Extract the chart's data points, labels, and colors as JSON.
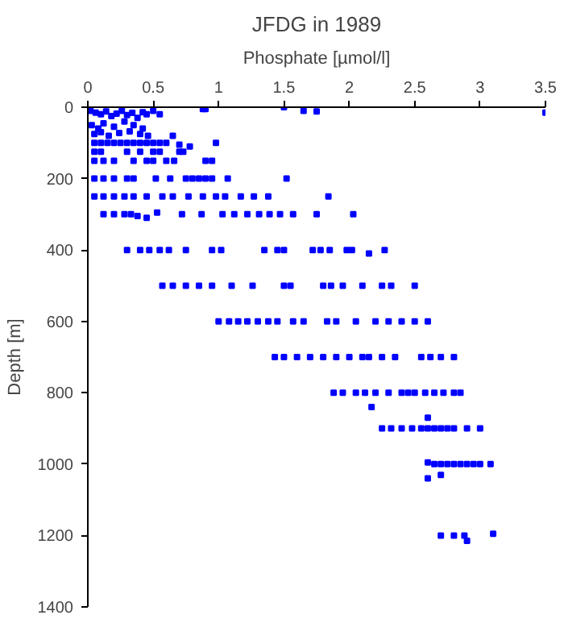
{
  "chart_data": {
    "type": "scatter",
    "title": "JFDG in 1989",
    "xlabel": "Phosphate [µmol/l]",
    "ylabel": "Depth [m]",
    "xlim": [
      0,
      3.5
    ],
    "xticks": [
      0,
      0.5,
      1,
      1.5,
      2,
      2.5,
      3,
      3.5
    ],
    "ylim": [
      1400,
      0
    ],
    "yticks": [
      0,
      200,
      400,
      600,
      800,
      1000,
      1200,
      1400
    ],
    "grid": false,
    "marker": "square",
    "series": [
      {
        "color": "#0000ff",
        "x": [
          0.02,
          0.06,
          0.1,
          0.14,
          0.18,
          0.22,
          0.26,
          0.3,
          0.34,
          0.38,
          0.42,
          0.45,
          0.5,
          0.55,
          0.88,
          0.9,
          1.5,
          1.65,
          1.75,
          3.5,
          0.03,
          0.08,
          0.12,
          0.2,
          0.28,
          0.35,
          0.42,
          0.05,
          0.1,
          0.16,
          0.24,
          0.32,
          0.4,
          0.46,
          0.65,
          0.05,
          0.1,
          0.15,
          0.2,
          0.25,
          0.3,
          0.35,
          0.4,
          0.45,
          0.5,
          0.55,
          0.6,
          0.7,
          0.78,
          0.98,
          0.05,
          0.1,
          0.3,
          0.4,
          0.5,
          0.55,
          0.7,
          0.73,
          0.05,
          0.12,
          0.2,
          0.35,
          0.45,
          0.5,
          0.6,
          0.66,
          0.9,
          0.95,
          0.05,
          0.12,
          0.2,
          0.3,
          0.35,
          0.52,
          0.63,
          0.75,
          0.8,
          0.85,
          0.9,
          0.95,
          1.07,
          1.52,
          0.05,
          0.12,
          0.2,
          0.28,
          0.35,
          0.45,
          0.57,
          0.65,
          0.77,
          0.88,
          0.98,
          1.05,
          1.17,
          1.27,
          1.38,
          1.84,
          0.12,
          0.2,
          0.28,
          0.33,
          0.38,
          0.45,
          0.53,
          0.72,
          0.87,
          1.03,
          1.12,
          1.22,
          1.31,
          1.39,
          1.47,
          1.57,
          1.75,
          2.03,
          0.3,
          0.4,
          0.47,
          0.55,
          0.62,
          0.75,
          0.95,
          1.02,
          1.35,
          1.45,
          1.5,
          1.72,
          1.78,
          1.85,
          1.98,
          2.02,
          2.15,
          2.27,
          0.57,
          0.65,
          0.75,
          0.85,
          0.95,
          1.1,
          1.26,
          1.5,
          1.55,
          1.8,
          1.86,
          1.95,
          2.1,
          2.25,
          2.32,
          2.5,
          1.0,
          1.08,
          1.15,
          1.22,
          1.3,
          1.38,
          1.45,
          1.57,
          1.65,
          1.83,
          1.9,
          2.05,
          2.2,
          2.3,
          2.4,
          2.5,
          2.6,
          1.43,
          1.5,
          1.6,
          1.7,
          1.8,
          1.9,
          2.0,
          2.1,
          2.15,
          2.25,
          2.35,
          2.55,
          2.62,
          2.7,
          2.8,
          1.88,
          1.95,
          2.05,
          2.12,
          2.2,
          2.3,
          2.4,
          2.45,
          2.5,
          2.58,
          2.65,
          2.72,
          2.8,
          2.85,
          2.17,
          2.25,
          2.32,
          2.4,
          2.48,
          2.55,
          2.6,
          2.65,
          2.7,
          2.75,
          2.8,
          2.9,
          3.0,
          2.6,
          2.6,
          2.65,
          2.7,
          2.75,
          2.8,
          2.85,
          2.9,
          2.95,
          3.0,
          3.08,
          2.6,
          2.7,
          2.7,
          2.8,
          2.88,
          2.9,
          3.1
        ],
        "values": [
          10,
          15,
          20,
          12,
          25,
          18,
          10,
          22,
          16,
          30,
          14,
          20,
          10,
          20,
          5,
          5,
          0,
          10,
          12,
          15,
          50,
          60,
          45,
          55,
          40,
          50,
          60,
          75,
          70,
          80,
          72,
          68,
          75,
          80,
          80,
          100,
          100,
          100,
          100,
          100,
          100,
          100,
          100,
          100,
          100,
          100,
          100,
          105,
          110,
          100,
          125,
          125,
          125,
          125,
          125,
          125,
          125,
          125,
          150,
          150,
          150,
          150,
          150,
          150,
          150,
          150,
          150,
          150,
          200,
          200,
          200,
          200,
          200,
          200,
          200,
          200,
          200,
          200,
          200,
          200,
          200,
          200,
          250,
          250,
          250,
          250,
          250,
          250,
          250,
          250,
          250,
          250,
          250,
          250,
          250,
          250,
          250,
          250,
          300,
          300,
          300,
          300,
          305,
          310,
          295,
          300,
          300,
          300,
          300,
          300,
          300,
          300,
          300,
          300,
          300,
          300,
          400,
          400,
          400,
          400,
          400,
          400,
          400,
          400,
          400,
          400,
          400,
          400,
          400,
          400,
          400,
          400,
          410,
          400,
          500,
          500,
          500,
          500,
          500,
          500,
          500,
          500,
          500,
          500,
          500,
          500,
          500,
          500,
          500,
          500,
          600,
          600,
          600,
          600,
          600,
          600,
          600,
          600,
          600,
          600,
          600,
          600,
          600,
          600,
          600,
          600,
          600,
          700,
          700,
          700,
          700,
          700,
          700,
          700,
          700,
          700,
          700,
          700,
          700,
          700,
          700,
          700,
          800,
          800,
          800,
          800,
          800,
          800,
          800,
          800,
          800,
          800,
          800,
          800,
          800,
          800,
          840,
          900,
          900,
          900,
          900,
          900,
          900,
          900,
          900,
          900,
          900,
          900,
          900,
          870,
          995,
          1000,
          1000,
          1000,
          1000,
          1000,
          1000,
          1000,
          1000,
          1000,
          1040,
          1030,
          1200,
          1200,
          1200,
          1215,
          1195
        ]
      }
    ]
  }
}
